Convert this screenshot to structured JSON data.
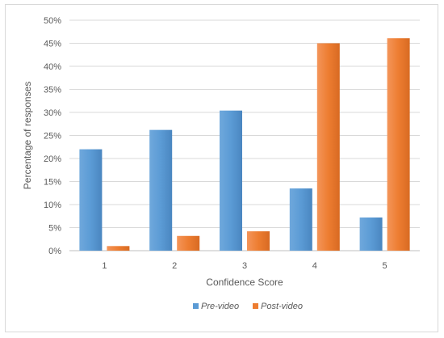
{
  "chart_data": {
    "type": "bar",
    "title": "",
    "xlabel": "Confidence Score",
    "ylabel": "Percentage of responses",
    "categories": [
      "1",
      "2",
      "3",
      "4",
      "5"
    ],
    "ylim": [
      0,
      50
    ],
    "yticks": [
      "0%",
      "5%",
      "10%",
      "15%",
      "20%",
      "25%",
      "30%",
      "35%",
      "40%",
      "45%",
      "50%"
    ],
    "grid": true,
    "legend_position": "bottom",
    "series": [
      {
        "name": "Pre-video",
        "color": "#5b9bd5",
        "values": [
          22,
          26.2,
          30.4,
          13.5,
          7.2
        ]
      },
      {
        "name": "Post-video",
        "color": "#ed7d31",
        "values": [
          1,
          3.2,
          4.2,
          45,
          46.1
        ]
      }
    ]
  }
}
